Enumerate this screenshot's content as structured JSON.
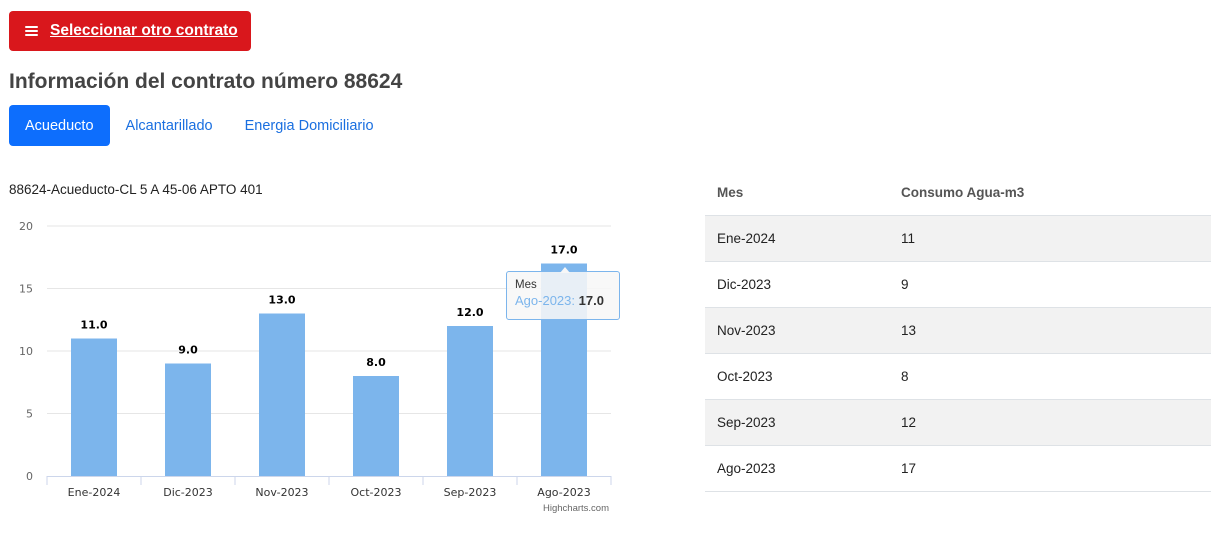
{
  "header": {
    "select_button_label": "Seleccionar otro contrato",
    "title": "Información del contrato número 88624"
  },
  "tabs": [
    {
      "label": "Acueducto",
      "active": true
    },
    {
      "label": "Alcantarillado",
      "active": false
    },
    {
      "label": "Energia Domiciliario",
      "active": false
    }
  ],
  "chart_caption": "88624-Acueducto-CL 5 A 45-06 APTO 401",
  "colors": {
    "accent": "#d9171c",
    "tab_active": "#0d6efd",
    "bar": "#7cb5ec"
  },
  "chart_data": {
    "type": "bar",
    "categories": [
      "Ene-2024",
      "Dic-2023",
      "Nov-2023",
      "Oct-2023",
      "Sep-2023",
      "Ago-2023"
    ],
    "values": [
      11,
      9,
      13,
      8,
      12,
      17
    ],
    "data_labels": [
      "11.0",
      "9.0",
      "13.0",
      "8.0",
      "12.0",
      "17.0"
    ],
    "yticks": [
      0,
      5,
      10,
      15,
      20
    ],
    "ylim": [
      0,
      20
    ],
    "grid": true,
    "credit": "Highcharts.com"
  },
  "tooltip": {
    "title": "Mes",
    "key": "Ago-2023",
    "value": "17.0"
  },
  "table": {
    "headers": [
      "Mes",
      "Consumo Agua-m3"
    ],
    "rows": [
      [
        "Ene-2024",
        "11"
      ],
      [
        "Dic-2023",
        "9"
      ],
      [
        "Nov-2023",
        "13"
      ],
      [
        "Oct-2023",
        "8"
      ],
      [
        "Sep-2023",
        "12"
      ],
      [
        "Ago-2023",
        "17"
      ]
    ]
  }
}
